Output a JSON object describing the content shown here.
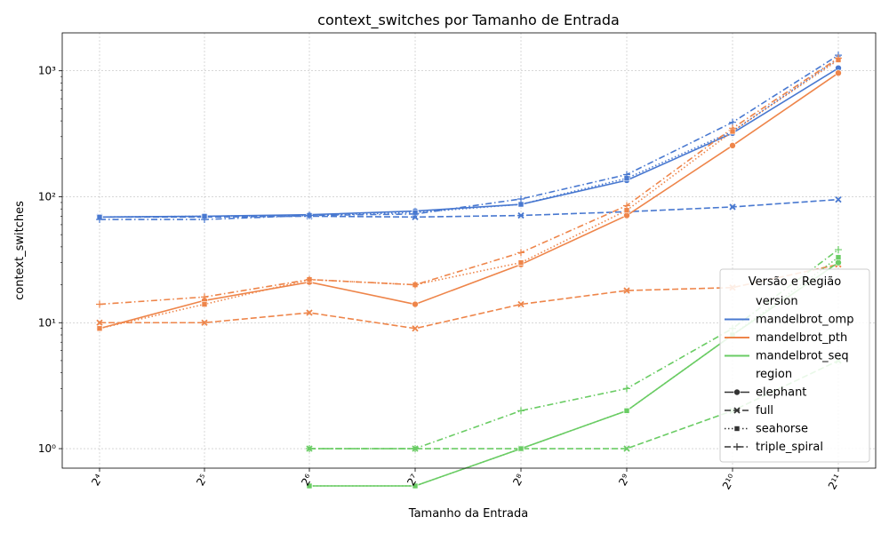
{
  "chart_data": {
    "type": "line",
    "title": "context_switches por Tamanho de Entrada",
    "xlabel": "Tamanho da Entrada",
    "ylabel": "context_switches",
    "x": [
      16,
      32,
      64,
      128,
      256,
      512,
      1024,
      2048
    ],
    "x_tick_labels": [
      "2⁴",
      "2⁵",
      "2⁶",
      "2⁷",
      "2⁸",
      "2⁹",
      "2¹⁰",
      "2¹¹"
    ],
    "x_scale": "log2",
    "y_scale": "log10",
    "ylim": [
      0.7,
      2000
    ],
    "y_tick_labels": [
      "10⁰",
      "10¹",
      "10²",
      "10³"
    ],
    "grid": true,
    "legend": {
      "title": "Versão e Região",
      "position": "lower-right",
      "version_header": "version",
      "region_header": "region"
    },
    "versions": [
      {
        "name": "mandelbrot_omp",
        "color": "#4878d0"
      },
      {
        "name": "mandelbrot_pth",
        "color": "#ee854a"
      },
      {
        "name": "mandelbrot_seq",
        "color": "#6acc64"
      }
    ],
    "regions": [
      {
        "name": "elephant",
        "dash": "solid",
        "marker": "circle"
      },
      {
        "name": "full",
        "dash": "dashed",
        "marker": "x"
      },
      {
        "name": "seahorse",
        "dash": "dotted",
        "marker": "square"
      },
      {
        "name": "triple_spiral",
        "dash": "dashdot",
        "marker": "plus"
      }
    ],
    "series": [
      {
        "version": "mandelbrot_omp",
        "region": "elephant",
        "values": [
          69,
          70,
          72,
          77,
          87,
          135,
          320,
          1050
        ]
      },
      {
        "version": "mandelbrot_omp",
        "region": "full",
        "values": [
          69,
          69,
          70,
          69,
          71,
          76,
          83,
          95
        ]
      },
      {
        "version": "mandelbrot_omp",
        "region": "seahorse",
        "values": [
          69,
          70,
          71,
          75,
          87,
          140,
          330,
          1250
        ]
      },
      {
        "version": "mandelbrot_omp",
        "region": "triple_spiral",
        "values": [
          66,
          66,
          71,
          73,
          96,
          150,
          390,
          1330
        ]
      },
      {
        "version": "mandelbrot_pth",
        "region": "elephant",
        "values": [
          9,
          15,
          21,
          14,
          29,
          71,
          255,
          960
        ]
      },
      {
        "version": "mandelbrot_pth",
        "region": "full",
        "values": [
          10,
          10,
          12,
          9,
          14,
          18,
          19,
          29
        ]
      },
      {
        "version": "mandelbrot_pth",
        "region": "seahorse",
        "values": [
          9,
          14,
          22,
          20,
          30,
          78,
          330,
          1220
        ]
      },
      {
        "version": "mandelbrot_pth",
        "region": "triple_spiral",
        "values": [
          14,
          16,
          22,
          20,
          36,
          85,
          350,
          1260
        ]
      },
      {
        "version": "mandelbrot_seq",
        "region": "elephant",
        "values": [
          null,
          null,
          0,
          0,
          1,
          2,
          8,
          30
        ]
      },
      {
        "version": "mandelbrot_seq",
        "region": "full",
        "values": [
          null,
          null,
          1,
          1,
          1,
          1,
          2,
          5
        ]
      },
      {
        "version": "mandelbrot_seq",
        "region": "seahorse",
        "values": [
          null,
          null,
          0,
          0,
          1,
          2,
          8,
          33
        ]
      },
      {
        "version": "mandelbrot_seq",
        "region": "triple_spiral",
        "values": [
          null,
          null,
          1,
          1,
          2,
          3,
          9,
          38
        ]
      }
    ]
  }
}
